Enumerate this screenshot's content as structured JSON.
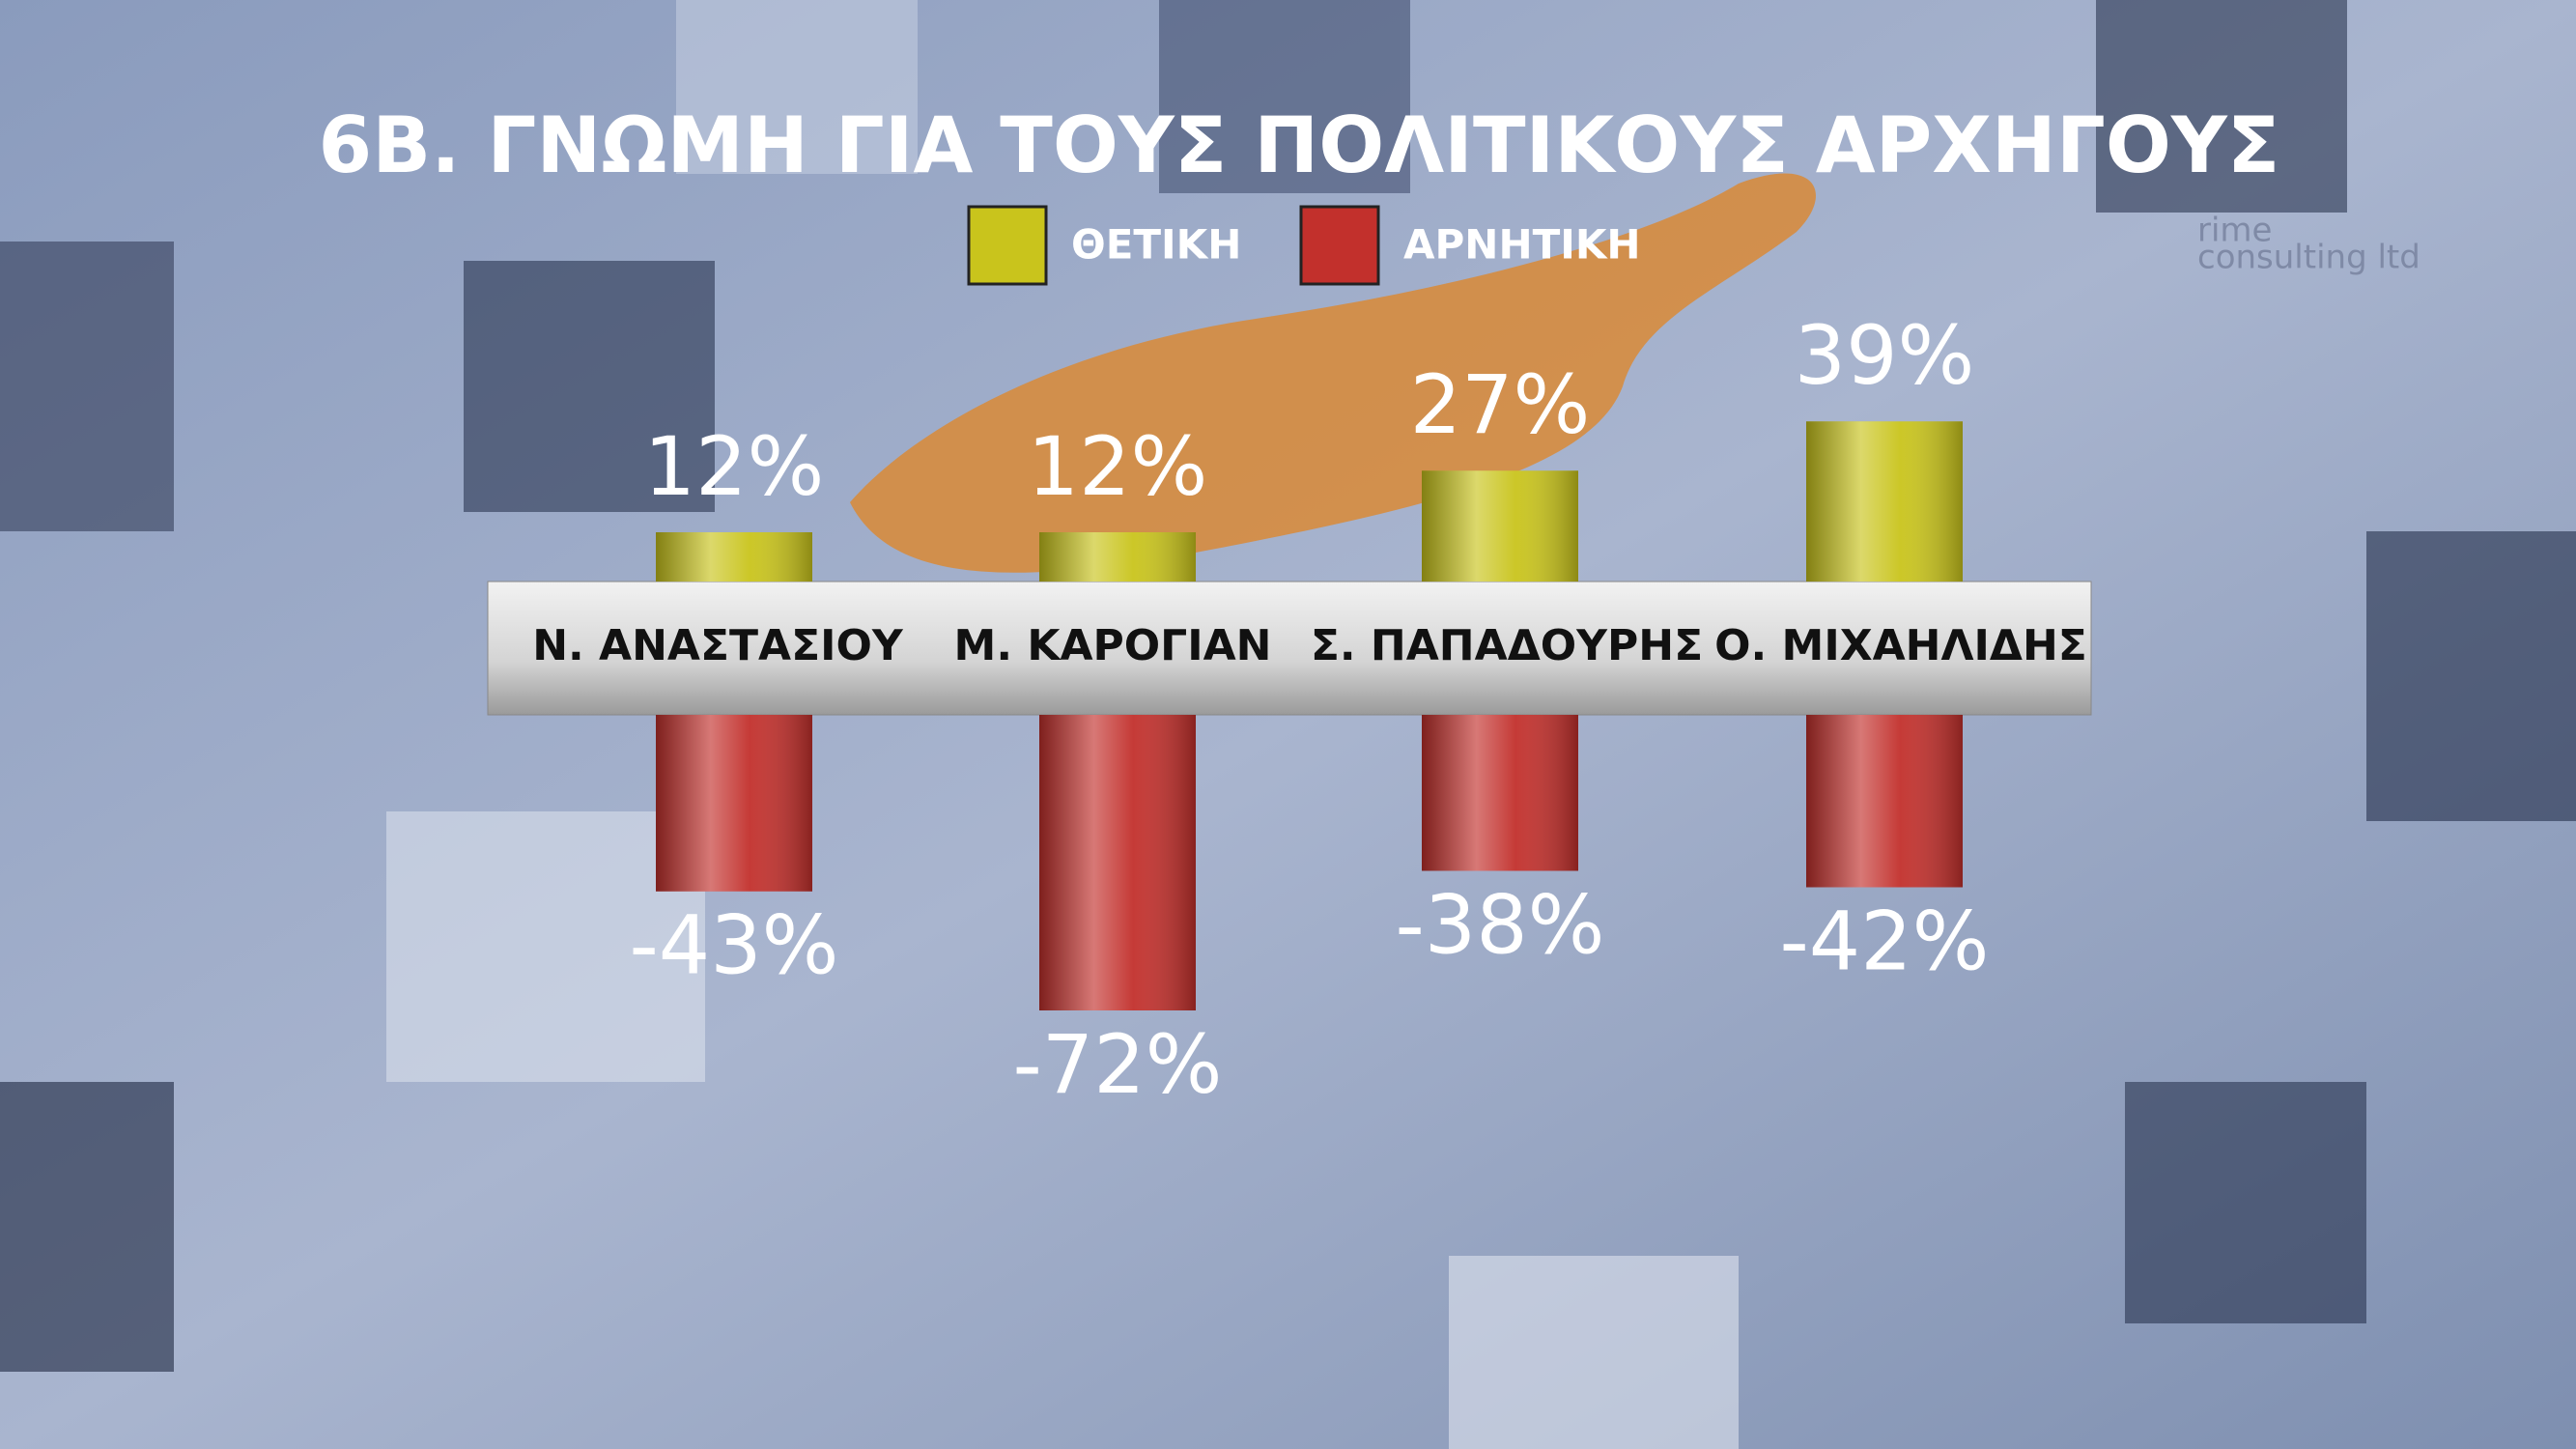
{
  "chart_data": {
    "type": "bar",
    "title": "6Β. ΓΝΩΜΗ ΓΙΑ ΤΟΥΣ ΠΟΛΙΤΙΚΟΥΣ ΑΡΧΗΓΟΥΣ",
    "categories": [
      "Ν. ΑΝΑΣΤΑΣΙΟΥ",
      "Μ. ΚΑΡΟΓΙΑΝ",
      "Σ. ΠΑΠΑΔΟΥΡΗΣ",
      "Ο. ΜΙΧΑΗΛΙΔΗΣ"
    ],
    "series": [
      {
        "name": "ΘΕΤΙΚΗ",
        "color": "#c9c41c",
        "values": [
          12,
          12,
          27,
          39
        ],
        "value_labels": [
          "12%",
          "12%",
          "27%",
          "39%"
        ]
      },
      {
        "name": "ΑΡΝΗΤΙΚΗ",
        "color": "#c2302c",
        "values": [
          -43,
          -72,
          -38,
          -42
        ],
        "value_labels": [
          "-43%",
          "-72%",
          "-38%",
          "-42%"
        ]
      }
    ]
  },
  "watermark": {
    "line1": "rime",
    "line2": "consulting ltd"
  }
}
